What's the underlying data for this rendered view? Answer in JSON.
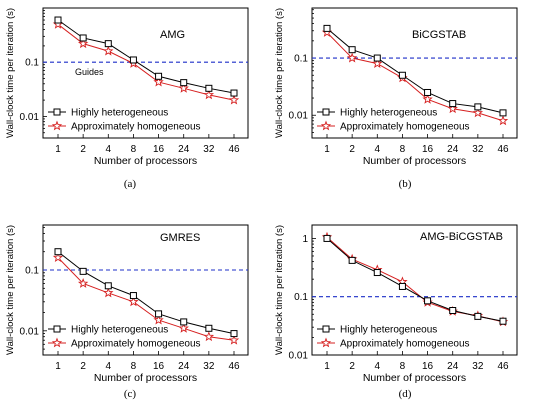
{
  "figure": {
    "panel_labels": [
      "(a)",
      "(b)",
      "(c)",
      "(d)"
    ]
  },
  "colors": {
    "heterogeneous": "#000000",
    "homogeneous": "#d62020",
    "guide": "#1d2fc8"
  },
  "chart_data": [
    {
      "type": "line",
      "title": "AMG",
      "xlabel": "Number of processors",
      "ylabel": "Wall-clock time per iteration (s)",
      "y_scale": "log",
      "ylim": [
        0.004,
        1.0
      ],
      "y_ticks": [
        0.01,
        0.1
      ],
      "y_tick_labels": [
        "0.01",
        "0.1"
      ],
      "categories": [
        "1",
        "2",
        "4",
        "8",
        "16",
        "24",
        "32",
        "46"
      ],
      "guide": {
        "value": 0.1,
        "label": "Guides"
      },
      "legend_position": "bottom-left",
      "series": [
        {
          "name": "Highly heterogeneous",
          "marker": "square",
          "values": [
            0.6,
            0.28,
            0.22,
            0.11,
            0.055,
            0.042,
            0.033,
            0.027
          ]
        },
        {
          "name": "Approximately homogeneous",
          "marker": "star",
          "values": [
            0.5,
            0.22,
            0.16,
            0.095,
            0.043,
            0.033,
            0.025,
            0.02
          ]
        }
      ]
    },
    {
      "type": "line",
      "title": "BiCGSTAB",
      "xlabel": "Number of processors",
      "ylabel": "Wall-clock time per iteration (s)",
      "y_scale": "log",
      "ylim": [
        0.004,
        0.75
      ],
      "y_ticks": [
        0.01,
        0.1
      ],
      "y_tick_labels": [
        "0.01",
        "0.1"
      ],
      "categories": [
        "1",
        "2",
        "4",
        "8",
        "16",
        "24",
        "32",
        "46"
      ],
      "guide": {
        "value": 0.1,
        "label": ""
      },
      "legend_position": "bottom-left",
      "series": [
        {
          "name": "Highly heterogeneous",
          "marker": "square",
          "values": [
            0.33,
            0.14,
            0.1,
            0.05,
            0.025,
            0.016,
            0.014,
            0.011
          ]
        },
        {
          "name": "Approximately homogeneous",
          "marker": "star",
          "values": [
            0.28,
            0.1,
            0.08,
            0.045,
            0.019,
            0.013,
            0.011,
            0.008
          ]
        }
      ]
    },
    {
      "type": "line",
      "title": "GMRES",
      "xlabel": "Number of processors",
      "ylabel": "Wall-clock time per iteration (s)",
      "y_scale": "log",
      "ylim": [
        0.004,
        0.55
      ],
      "y_ticks": [
        0.01,
        0.1
      ],
      "y_tick_labels": [
        "0.01",
        "0.1"
      ],
      "categories": [
        "1",
        "2",
        "4",
        "8",
        "16",
        "24",
        "32",
        "46"
      ],
      "guide": {
        "value": 0.1,
        "label": ""
      },
      "legend_position": "bottom-left",
      "series": [
        {
          "name": "Highly heterogeneous",
          "marker": "square",
          "values": [
            0.2,
            0.095,
            0.055,
            0.038,
            0.019,
            0.014,
            0.011,
            0.009
          ]
        },
        {
          "name": "Approximately homogeneous",
          "marker": "star",
          "values": [
            0.16,
            0.06,
            0.042,
            0.03,
            0.015,
            0.011,
            0.008,
            0.007
          ]
        }
      ]
    },
    {
      "type": "line",
      "title": "AMG-BiCGSTAB",
      "xlabel": "Number of processors",
      "ylabel": "Wall-clock time per iteration (s)",
      "y_scale": "log",
      "ylim": [
        0.01,
        1.7
      ],
      "y_ticks": [
        0.01,
        0.1,
        1
      ],
      "y_tick_labels": [
        "0.01",
        "0.1",
        "1"
      ],
      "categories": [
        "1",
        "2",
        "4",
        "8",
        "16",
        "24",
        "32",
        "46"
      ],
      "guide": {
        "value": 0.1,
        "label": ""
      },
      "legend_position": "bottom-left",
      "series": [
        {
          "name": "Highly heterogeneous",
          "marker": "square",
          "values": [
            1.0,
            0.42,
            0.26,
            0.15,
            0.085,
            0.058,
            0.046,
            0.038
          ]
        },
        {
          "name": "Approximately homogeneous",
          "marker": "star",
          "values": [
            1.05,
            0.44,
            0.29,
            0.18,
            0.08,
            0.056,
            0.047,
            0.037
          ]
        }
      ]
    }
  ]
}
